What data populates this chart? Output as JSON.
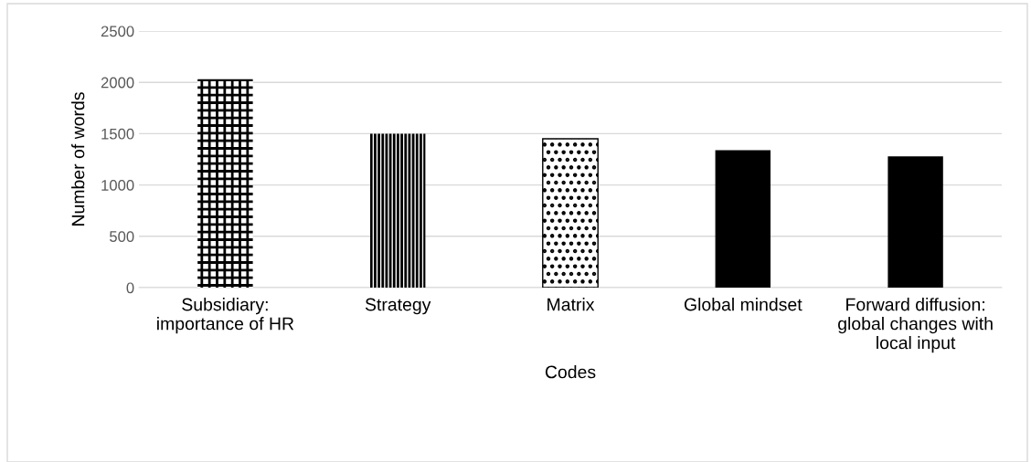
{
  "chart_data": {
    "type": "bar",
    "xlabel": "Codes",
    "ylabel": "Number of words",
    "categories": [
      "Subsidiary: importance of HR",
      "Strategy",
      "Matrix",
      "Global mindset",
      "Forward diffusion: global changes with local input"
    ],
    "values": [
      2030,
      1500,
      1450,
      1340,
      1280
    ],
    "colors": [
      "#000000",
      "#000000",
      "#000000",
      "#000000",
      "#000000"
    ],
    "ylim": [
      0,
      2500
    ],
    "yticks": [
      0,
      500,
      1000,
      1500,
      2000,
      2500
    ],
    "grid": "y",
    "legend": false
  }
}
